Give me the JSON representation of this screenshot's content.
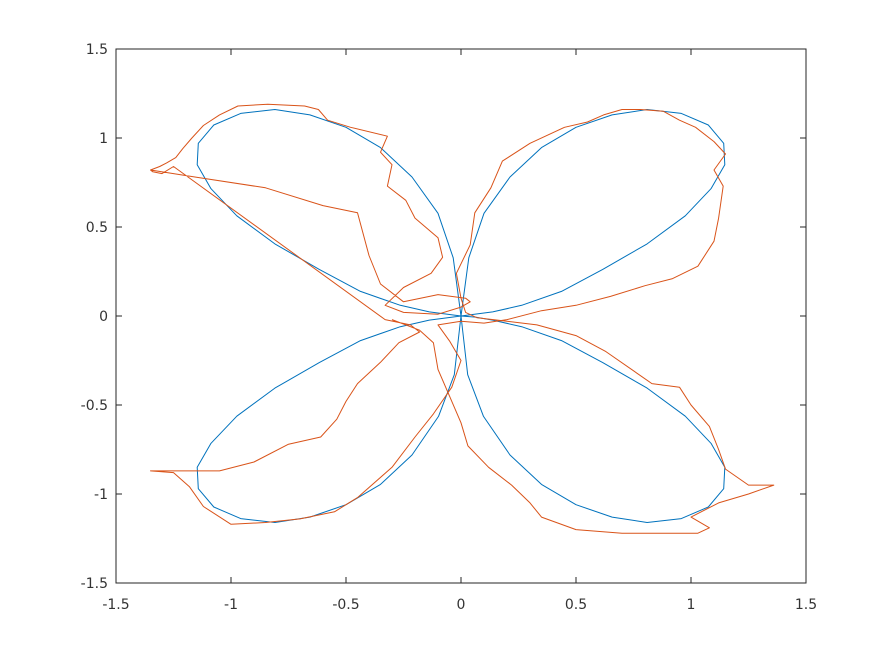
{
  "chart_data": {
    "type": "line",
    "title": "",
    "xlabel": "",
    "ylabel": "",
    "xlim": [
      -1.5,
      1.5
    ],
    "ylim": [
      -1.5,
      1.5
    ],
    "xticks": [
      -1.5,
      -1,
      -0.5,
      0,
      0.5,
      1,
      1.5
    ],
    "yticks": [
      -1.5,
      -1,
      -0.5,
      0,
      0.5,
      1,
      1.5
    ],
    "xtick_labels": [
      "-1.5",
      "-1",
      "-0.5",
      "0",
      "0.5",
      "1",
      "1.5"
    ],
    "ytick_labels": [
      "-1.5",
      "-1",
      "-0.5",
      "0",
      "0.5",
      "1",
      "1.5"
    ],
    "grid": false,
    "legend": "none",
    "series": [
      {
        "color": "#0072bd",
        "points": [
          [
            0.0,
            0.0
          ],
          [
            0.063,
            -0.006
          ],
          [
            0.138,
            -0.023
          ],
          [
            0.264,
            -0.06
          ],
          [
            0.437,
            -0.138
          ],
          [
            0.616,
            -0.262
          ],
          [
            0.809,
            -0.405
          ],
          [
            0.975,
            -0.563
          ],
          [
            1.087,
            -0.715
          ],
          [
            1.147,
            -0.85
          ],
          [
            1.142,
            -0.97
          ],
          [
            1.075,
            -1.073
          ],
          [
            0.958,
            -1.138
          ],
          [
            0.809,
            -1.16
          ],
          [
            0.657,
            -1.13
          ],
          [
            0.5,
            -1.06
          ],
          [
            0.35,
            -0.946
          ],
          [
            0.213,
            -0.781
          ],
          [
            0.098,
            -0.564
          ],
          [
            0.029,
            -0.33
          ],
          [
            0.0,
            0.0
          ],
          [
            0.034,
            0.327
          ],
          [
            0.1,
            0.577
          ],
          [
            0.213,
            0.781
          ],
          [
            0.35,
            0.946
          ],
          [
            0.5,
            1.06
          ],
          [
            0.657,
            1.13
          ],
          [
            0.809,
            1.16
          ],
          [
            0.958,
            1.138
          ],
          [
            1.075,
            1.073
          ],
          [
            1.142,
            0.97
          ],
          [
            1.147,
            0.85
          ],
          [
            1.087,
            0.715
          ],
          [
            0.975,
            0.563
          ],
          [
            0.809,
            0.405
          ],
          [
            0.616,
            0.262
          ],
          [
            0.437,
            0.138
          ],
          [
            0.264,
            0.06
          ],
          [
            0.138,
            0.023
          ],
          [
            0.0,
            0.0
          ],
          [
            -0.138,
            -0.023
          ],
          [
            -0.264,
            -0.06
          ],
          [
            -0.437,
            -0.138
          ],
          [
            -0.616,
            -0.262
          ],
          [
            -0.809,
            -0.405
          ],
          [
            -0.975,
            -0.563
          ],
          [
            -1.087,
            -0.715
          ],
          [
            -1.147,
            -0.85
          ],
          [
            -1.142,
            -0.97
          ],
          [
            -1.075,
            -1.073
          ],
          [
            -0.958,
            -1.138
          ],
          [
            -0.809,
            -1.16
          ],
          [
            -0.657,
            -1.13
          ],
          [
            -0.5,
            -1.06
          ],
          [
            -0.35,
            -0.946
          ],
          [
            -0.213,
            -0.781
          ],
          [
            -0.098,
            -0.564
          ],
          [
            -0.029,
            -0.33
          ],
          [
            0.0,
            0.0
          ],
          [
            -0.034,
            0.327
          ],
          [
            -0.1,
            0.577
          ],
          [
            -0.213,
            0.781
          ],
          [
            -0.35,
            0.946
          ],
          [
            -0.5,
            1.06
          ],
          [
            -0.657,
            1.13
          ],
          [
            -0.809,
            1.16
          ],
          [
            -0.958,
            1.138
          ],
          [
            -1.075,
            1.073
          ],
          [
            -1.142,
            0.97
          ],
          [
            -1.147,
            0.85
          ],
          [
            -1.087,
            0.715
          ],
          [
            -0.975,
            0.563
          ],
          [
            -0.809,
            0.405
          ],
          [
            -0.616,
            0.262
          ],
          [
            -0.437,
            0.138
          ],
          [
            -0.264,
            0.06
          ],
          [
            -0.138,
            0.023
          ],
          [
            0.0,
            0.0
          ]
        ]
      },
      {
        "color": "#d95319",
        "points": [
          [
            -1.35,
            0.82
          ],
          [
            -1.31,
            0.84
          ],
          [
            -1.28,
            0.86
          ],
          [
            -1.24,
            0.89
          ],
          [
            -1.21,
            0.94
          ],
          [
            -1.17,
            1.0
          ],
          [
            -1.12,
            1.07
          ],
          [
            -1.05,
            1.13
          ],
          [
            -0.97,
            1.18
          ],
          [
            -0.84,
            1.19
          ],
          [
            -0.68,
            1.18
          ],
          [
            -0.62,
            1.16
          ],
          [
            -0.58,
            1.1
          ],
          [
            -0.48,
            1.06
          ],
          [
            -0.32,
            1.01
          ],
          [
            -0.35,
            0.92
          ],
          [
            -0.3,
            0.85
          ],
          [
            -0.32,
            0.73
          ],
          [
            -0.24,
            0.65
          ],
          [
            -0.2,
            0.55
          ],
          [
            -0.1,
            0.44
          ],
          [
            -0.08,
            0.33
          ],
          [
            -0.13,
            0.24
          ],
          [
            -0.25,
            0.16
          ],
          [
            -0.33,
            0.06
          ],
          [
            -0.25,
            0.02
          ],
          [
            -0.1,
            0.01
          ],
          [
            0.0,
            0.05
          ],
          [
            0.04,
            0.08
          ],
          [
            0.02,
            0.1
          ],
          [
            -0.1,
            0.12
          ],
          [
            -0.25,
            0.08
          ],
          [
            -0.35,
            0.18
          ],
          [
            -0.4,
            0.34
          ],
          [
            -0.45,
            0.58
          ],
          [
            -0.6,
            0.62
          ],
          [
            -0.85,
            0.72
          ],
          [
            -1.15,
            0.78
          ],
          [
            -1.35,
            0.82
          ],
          [
            -1.34,
            0.81
          ],
          [
            -1.3,
            0.8
          ],
          [
            -1.25,
            0.84
          ],
          [
            -0.33,
            -0.02
          ],
          [
            -0.22,
            -0.05
          ],
          [
            -0.18,
            -0.09
          ],
          [
            -0.27,
            -0.15
          ],
          [
            -0.35,
            -0.26
          ],
          [
            -0.45,
            -0.38
          ],
          [
            -0.5,
            -0.48
          ],
          [
            -0.54,
            -0.58
          ],
          [
            -0.61,
            -0.68
          ],
          [
            -0.75,
            -0.72
          ],
          [
            -0.9,
            -0.82
          ],
          [
            -1.05,
            -0.87
          ],
          [
            -1.15,
            -0.87
          ],
          [
            -1.35,
            -0.87
          ],
          [
            -1.25,
            -0.88
          ],
          [
            -1.18,
            -0.96
          ],
          [
            -1.12,
            -1.07
          ],
          [
            -1.0,
            -1.17
          ],
          [
            -0.85,
            -1.16
          ],
          [
            -0.7,
            -1.14
          ],
          [
            -0.55,
            -1.1
          ],
          [
            -0.45,
            -1.02
          ],
          [
            -0.3,
            -0.85
          ],
          [
            -0.2,
            -0.68
          ],
          [
            -0.12,
            -0.55
          ],
          [
            -0.04,
            -0.4
          ],
          [
            0.0,
            -0.25
          ],
          [
            -0.05,
            -0.14
          ],
          [
            -0.1,
            -0.05
          ],
          [
            0.0,
            -0.03
          ],
          [
            0.1,
            -0.04
          ],
          [
            0.2,
            -0.02
          ],
          [
            0.35,
            0.03
          ],
          [
            0.5,
            0.06
          ],
          [
            0.65,
            0.11
          ],
          [
            0.8,
            0.17
          ],
          [
            0.92,
            0.21
          ],
          [
            1.03,
            0.28
          ],
          [
            1.1,
            0.42
          ],
          [
            1.12,
            0.55
          ],
          [
            1.14,
            0.73
          ],
          [
            1.1,
            0.82
          ],
          [
            1.15,
            0.91
          ],
          [
            1.1,
            0.98
          ],
          [
            1.02,
            1.06
          ],
          [
            0.95,
            1.1
          ],
          [
            0.88,
            1.15
          ],
          [
            0.78,
            1.16
          ],
          [
            0.7,
            1.16
          ],
          [
            0.62,
            1.13
          ],
          [
            0.55,
            1.09
          ],
          [
            0.45,
            1.06
          ],
          [
            0.3,
            0.97
          ],
          [
            0.18,
            0.87
          ],
          [
            0.13,
            0.72
          ],
          [
            0.06,
            0.58
          ],
          [
            0.04,
            0.4
          ],
          [
            -0.02,
            0.24
          ],
          [
            0.0,
            0.1
          ],
          [
            0.02,
            0.02
          ],
          [
            0.07,
            -0.01
          ],
          [
            0.2,
            -0.03
          ],
          [
            0.33,
            -0.05
          ],
          [
            0.5,
            -0.11
          ],
          [
            0.63,
            -0.2
          ],
          [
            0.83,
            -0.38
          ],
          [
            0.95,
            -0.4
          ],
          [
            1.0,
            -0.5
          ],
          [
            1.08,
            -0.62
          ],
          [
            1.12,
            -0.75
          ],
          [
            1.15,
            -0.86
          ],
          [
            1.25,
            -0.95
          ],
          [
            1.36,
            -0.95
          ],
          [
            1.25,
            -1.0
          ],
          [
            1.12,
            -1.05
          ],
          [
            1.0,
            -1.13
          ],
          [
            1.08,
            -1.19
          ],
          [
            1.03,
            -1.22
          ],
          [
            0.9,
            -1.22
          ],
          [
            0.7,
            -1.22
          ],
          [
            0.5,
            -1.2
          ],
          [
            0.35,
            -1.13
          ],
          [
            0.3,
            -1.05
          ],
          [
            0.22,
            -0.95
          ],
          [
            0.12,
            -0.85
          ],
          [
            0.03,
            -0.73
          ],
          [
            0.0,
            -0.6
          ],
          [
            -0.05,
            -0.45
          ],
          [
            -0.1,
            -0.3
          ],
          [
            -0.12,
            -0.15
          ],
          [
            -0.18,
            -0.08
          ],
          [
            -0.3,
            -0.02
          ]
        ]
      }
    ]
  }
}
